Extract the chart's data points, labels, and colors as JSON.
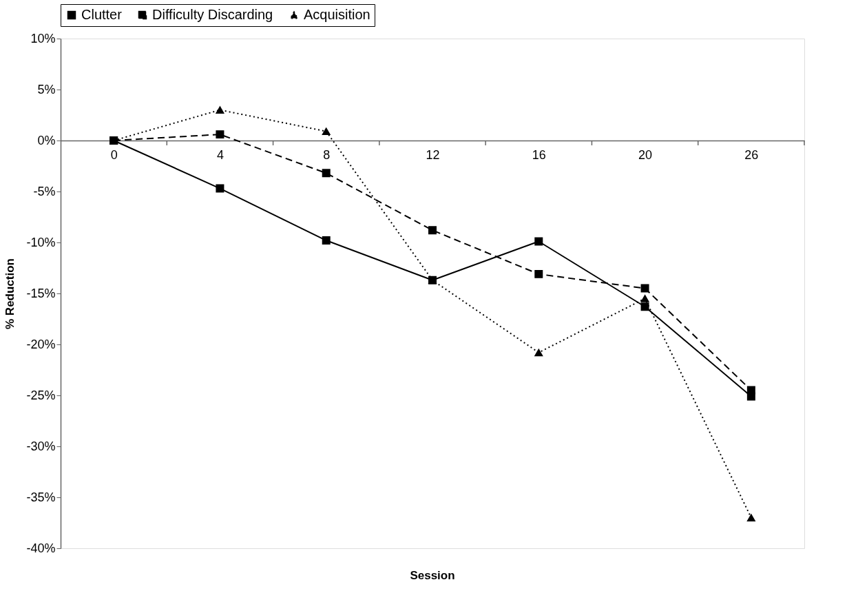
{
  "chart_data": {
    "type": "line",
    "xlabel": "Session",
    "ylabel": "% Reduction",
    "categories": [
      "0",
      "4",
      "8",
      "12",
      "16",
      "20",
      "26"
    ],
    "series": [
      {
        "name": "Clutter",
        "color": "#000000",
        "marker": "square",
        "line_style": "solid",
        "values": [
          0,
          -4.7,
          -9.8,
          -13.7,
          -9.9,
          -16.3,
          -25.1
        ]
      },
      {
        "name": "Difficulty Discarding",
        "color": "#000000",
        "marker": "square",
        "line_style": "dashed",
        "values": [
          0,
          0.6,
          -3.2,
          -8.8,
          -13.1,
          -14.5,
          -24.5
        ]
      },
      {
        "name": "Acquisition",
        "color": "#000000",
        "marker": "triangle",
        "line_style": "dotted",
        "values": [
          0,
          3.0,
          0.9,
          -13.7,
          -20.8,
          -15.5,
          -37.0
        ]
      }
    ],
    "ylim": [
      -40,
      10
    ],
    "yticks": [
      {
        "value": -40,
        "label": "-40%"
      },
      {
        "value": -35,
        "label": "-35%"
      },
      {
        "value": -30,
        "label": "-30%"
      },
      {
        "value": -25,
        "label": "-25%"
      },
      {
        "value": -20,
        "label": "-20%"
      },
      {
        "value": -15,
        "label": "-15%"
      },
      {
        "value": -10,
        "label": "-10%"
      },
      {
        "value": -5,
        "label": "-5%"
      },
      {
        "value": 0,
        "label": "0%"
      },
      {
        "value": 5,
        "label": "5%"
      },
      {
        "value": 10,
        "label": "10%"
      }
    ],
    "grid": false,
    "legend": "top"
  }
}
